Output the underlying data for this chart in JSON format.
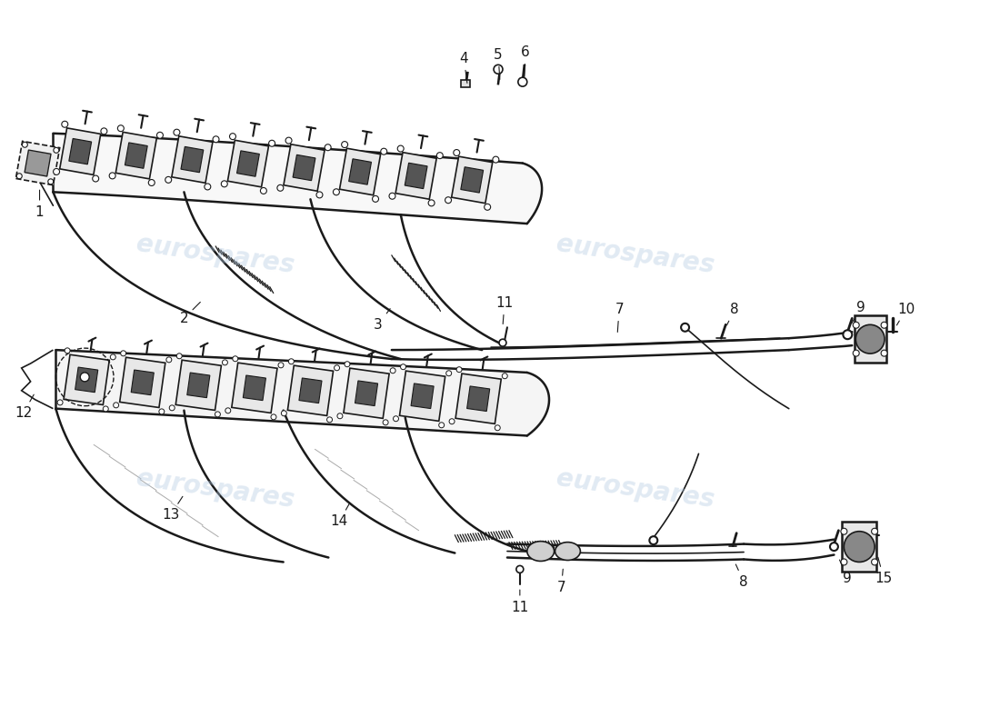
{
  "background_color": "#ffffff",
  "line_color": "#1a1a1a",
  "watermark_text": "eurospares",
  "watermark_color": "#b0c8e0",
  "watermark_alpha": 0.38,
  "figsize": [
    11.0,
    8.0
  ],
  "dpi": 100
}
